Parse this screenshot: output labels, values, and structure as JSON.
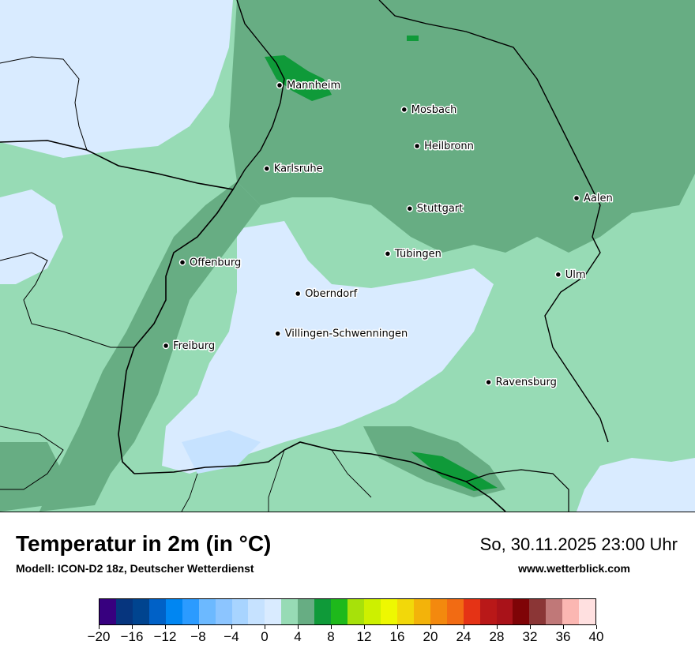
{
  "map": {
    "cities": [
      {
        "name": "Mannheim",
        "lon": 8.47,
        "lat": 49.49
      },
      {
        "name": "Mosbach",
        "lon": 9.15,
        "lat": 49.35
      },
      {
        "name": "Heilbronn",
        "lon": 9.22,
        "lat": 49.14
      },
      {
        "name": "Karlsruhe",
        "lon": 8.4,
        "lat": 49.01
      },
      {
        "name": "Aalen",
        "lon": 10.09,
        "lat": 48.84
      },
      {
        "name": "Stuttgart",
        "lon": 9.18,
        "lat": 48.78
      },
      {
        "name": "Tübingen",
        "lon": 9.06,
        "lat": 48.52
      },
      {
        "name": "Offenburg",
        "lon": 7.94,
        "lat": 48.47
      },
      {
        "name": "Ulm",
        "lon": 9.99,
        "lat": 48.4
      },
      {
        "name": "Oberndorf",
        "lon": 8.57,
        "lat": 48.29
      },
      {
        "name": "Villingen-Schwenningen",
        "lon": 8.46,
        "lat": 48.06
      },
      {
        "name": "Freiburg",
        "lon": 7.85,
        "lat": 47.99
      },
      {
        "name": "Ravensburg",
        "lon": 9.61,
        "lat": 47.78
      }
    ]
  },
  "footer": {
    "title": "Temperatur in 2m (in °C)",
    "subtitle": "Modell: ICON-D2 18z, Deutscher Wetterdienst",
    "datetime": "So, 30.11.2025 23:00 Uhr",
    "website": "www.wetterblick.com"
  },
  "legend": {
    "min": -20,
    "max": 40,
    "tick_labels": [
      "−20",
      "−16",
      "−12",
      "−8",
      "−4",
      "0",
      "4",
      "8",
      "12",
      "16",
      "20",
      "24",
      "28",
      "32",
      "36",
      "40"
    ],
    "colors": [
      "#37007f",
      "#06357e",
      "#00448f",
      "#0061c7",
      "#0086f2",
      "#2b9bff",
      "#6cb9ff",
      "#8cc5ff",
      "#a8d4ff",
      "#c6e2ff",
      "#d9ebff",
      "#97dbb5",
      "#67ad83",
      "#0f9a39",
      "#1eb91b",
      "#a7e10a",
      "#cdf000",
      "#eef801",
      "#f2d80a",
      "#f3b30a",
      "#f3890e",
      "#f26b13",
      "#e53315",
      "#b91818",
      "#a91219",
      "#7f0407",
      "#8b3636",
      "#c07878",
      "#fbb7b2",
      "#ffe0e0"
    ]
  }
}
